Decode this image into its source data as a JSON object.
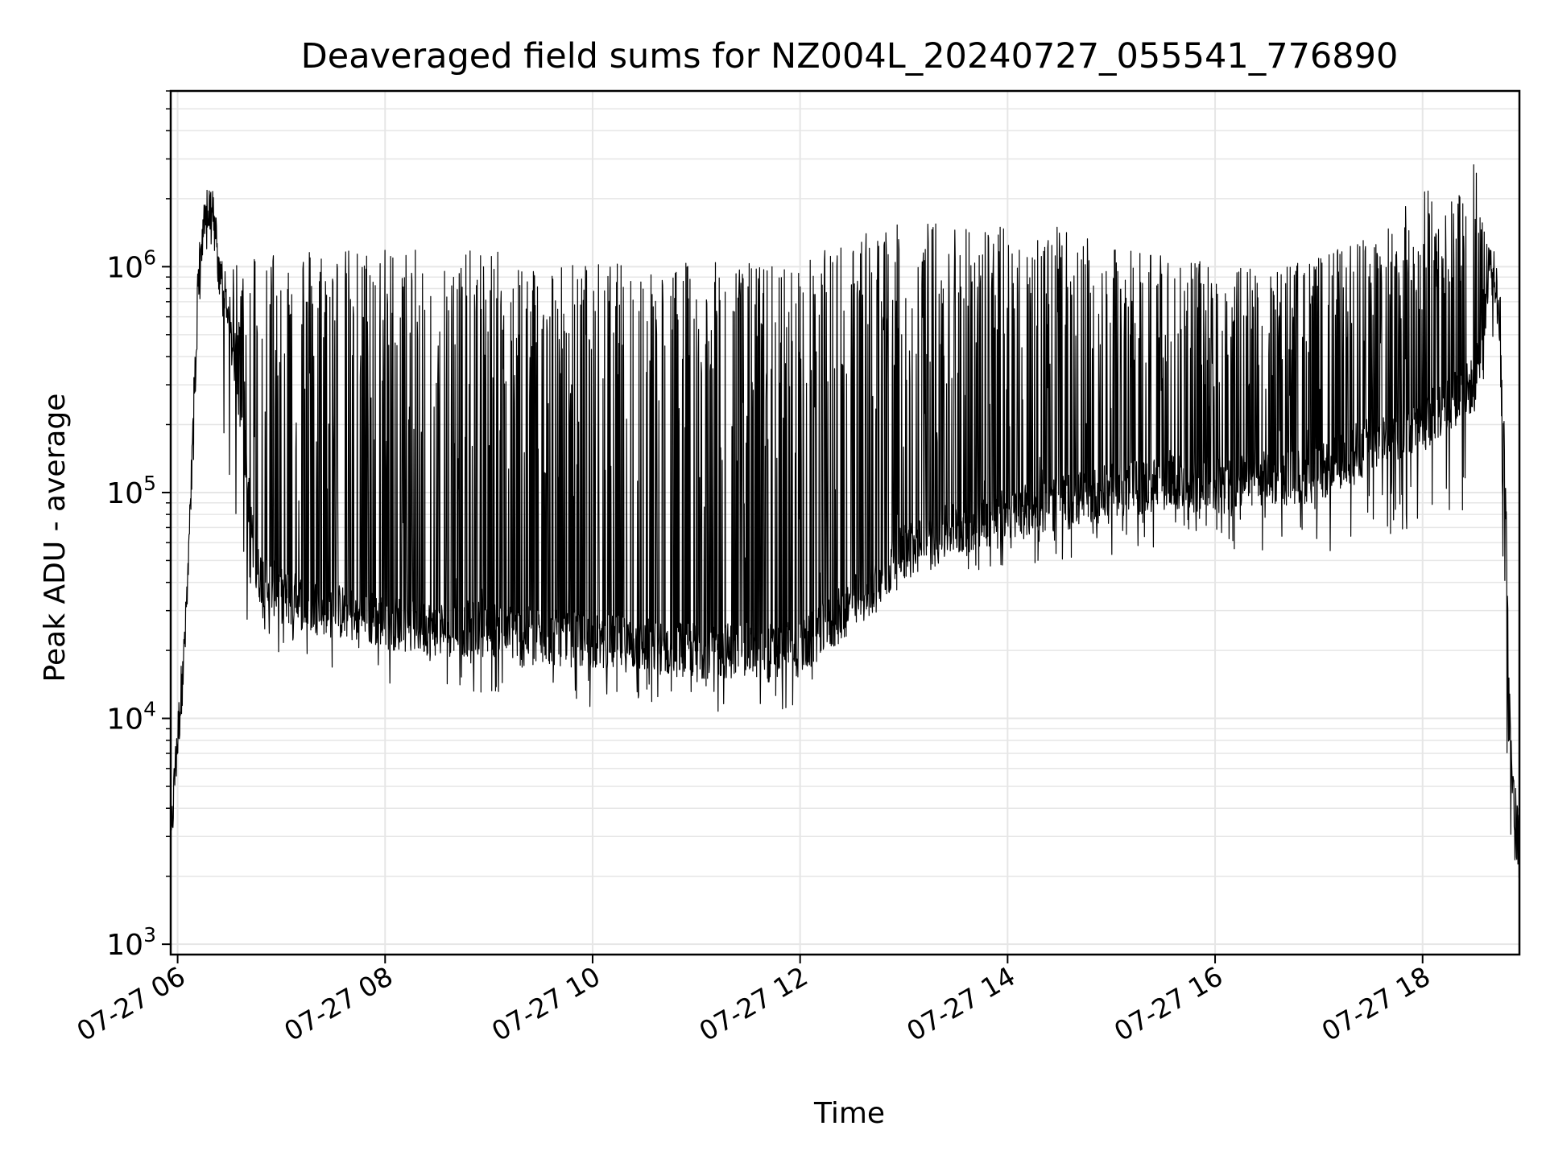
{
  "chart_data": {
    "type": "line",
    "title": "Deaveraged field sums for NZ004L_20240727_055541_776890",
    "xlabel": "Time",
    "ylabel": "Peak ADU - average",
    "y_scale": "log",
    "ylim": [
      900,
      6000000
    ],
    "xlim": [
      "07-27 05:56",
      "07-27 18:56"
    ],
    "grid": true,
    "line_color": "#000000",
    "x_ticks": [
      "07-27 06",
      "07-27 08",
      "07-27 10",
      "07-27 12",
      "07-27 14",
      "07-27 16",
      "07-27 18"
    ],
    "y_ticks": [
      {
        "base": "10",
        "exp": "3",
        "value": 1000
      },
      {
        "base": "10",
        "exp": "4",
        "value": 10000
      },
      {
        "base": "10",
        "exp": "5",
        "value": 100000
      },
      {
        "base": "10",
        "exp": "6",
        "value": 1000000
      }
    ],
    "series": [
      {
        "x": [
          "05:56",
          "05:58",
          "06:00",
          "06:02",
          "06:04",
          "06:06",
          "06:08",
          "06:10",
          "06:12",
          "06:15",
          "06:18",
          "06:21",
          "06:24",
          "06:27",
          "06:30",
          "06:33",
          "06:36",
          "06:39",
          "06:42",
          "06:45",
          "07:00",
          "07:15",
          "07:30",
          "08:00",
          "08:30",
          "09:00",
          "09:30",
          "10:00",
          "10:30",
          "11:00",
          "11:30",
          "12:00",
          "12:15",
          "12:30",
          "12:45",
          "13:00",
          "13:15",
          "13:30",
          "14:00",
          "14:30",
          "15:00",
          "15:30",
          "16:00",
          "16:30",
          "17:00",
          "17:20",
          "17:40",
          "18:00",
          "18:15",
          "18:30",
          "18:35",
          "18:40",
          "18:45",
          "18:48",
          "18:51",
          "18:54",
          "18:56"
        ],
        "baseline": [
          2500,
          5000,
          8000,
          13000,
          20000,
          40000,
          100000,
          300000,
          800000,
          1400000,
          1700000,
          1600000,
          900000,
          700000,
          500000,
          400000,
          250000,
          150000,
          80000,
          45000,
          35000,
          32000,
          30000,
          27000,
          25000,
          25000,
          23000,
          22000,
          21000,
          20000,
          20000,
          20000,
          25000,
          32000,
          40000,
          55000,
          60000,
          70000,
          80000,
          90000,
          100000,
          110000,
          110000,
          115000,
          120000,
          150000,
          180000,
          200000,
          250000,
          300000,
          600000,
          1000000,
          600000,
          100000,
          8000,
          3000,
          2500
        ],
        "peak": [
          3000,
          6000,
          10000,
          15000,
          25000,
          50000,
          150000,
          500000,
          1200000,
          1700000,
          2800000,
          1400000,
          1200000,
          1000000,
          700000,
          1300000,
          800000,
          1200000,
          1300000,
          1300000,
          1250000,
          1300000,
          1200000,
          1250000,
          1150000,
          1200000,
          1100000,
          1050000,
          1050000,
          1050000,
          1050000,
          1050000,
          1200000,
          1400000,
          1500000,
          1550000,
          1600000,
          1650000,
          1500000,
          1500000,
          1200000,
          1200000,
          1000000,
          1000000,
          1100000,
          1300000,
          1500000,
          2300000,
          2200000,
          3100000,
          1600000,
          1200000,
          300000,
          8000,
          6000,
          5000,
          4000
        ],
        "trough": [
          2000,
          4300,
          7000,
          10000,
          15000,
          30000,
          80000,
          200000,
          600000,
          1100000,
          1300000,
          1000000,
          200000,
          150000,
          120000,
          60000,
          35000,
          25000,
          22000,
          20000,
          18000,
          16000,
          15000,
          14000,
          13000,
          13000,
          12000,
          11000,
          10500,
          10000,
          10500,
          11000,
          20000,
          25000,
          30000,
          40000,
          42000,
          45000,
          45000,
          50000,
          52000,
          55000,
          52000,
          55000,
          50000,
          60000,
          60000,
          65000,
          75000,
          85000,
          300000,
          500000,
          200000,
          5000,
          2500,
          1400,
          2000
        ]
      }
    ]
  }
}
